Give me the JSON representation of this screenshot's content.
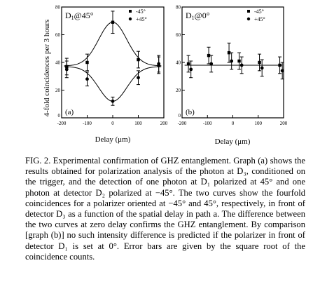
{
  "figure": {
    "ylabel": "4-fold coincidences per 3 hours",
    "panels": [
      {
        "id": "a",
        "tag": "(a)",
        "title_main": "D",
        "title_sub": "1",
        "title_suffix": "@45°",
        "xlabel": "Delay (μm)"
      },
      {
        "id": "b",
        "tag": "(b)",
        "title_main": "D",
        "title_sub": "1",
        "title_suffix": "@0°",
        "xlabel": "Delay (μm)"
      }
    ]
  },
  "chart_data": [
    {
      "type": "scatter",
      "panel": "a",
      "xlim": [
        -200,
        200
      ],
      "ylim": [
        0,
        80
      ],
      "xticks": [
        -200,
        -100,
        0,
        100,
        200
      ],
      "yticks": [
        0,
        20,
        40,
        60,
        80
      ],
      "grid": false,
      "legend_position": "top-right",
      "series": [
        {
          "name": "-45°",
          "marker": "square",
          "x": [
            -180,
            -100,
            0,
            100,
            180
          ],
          "y": [
            37,
            40,
            69,
            42,
            38
          ],
          "err": [
            6,
            6,
            8,
            6,
            6
          ],
          "curve": "gaussian-peak"
        },
        {
          "name": "+45°",
          "marker": "circle",
          "x": [
            -180,
            -100,
            0,
            100,
            180
          ],
          "y": [
            35,
            28,
            12,
            29,
            39
          ],
          "err": [
            6,
            5,
            3,
            5,
            6
          ],
          "curve": "gaussian-dip"
        }
      ]
    },
    {
      "type": "scatter",
      "panel": "b",
      "xlim": [
        -200,
        200
      ],
      "ylim": [
        0,
        80
      ],
      "xticks": [
        -200,
        -100,
        0,
        100,
        200
      ],
      "yticks": [
        0,
        20,
        40,
        60,
        80
      ],
      "grid": false,
      "legend_position": "top-right",
      "series": [
        {
          "name": "-45°",
          "marker": "square",
          "x": [
            -175,
            -95,
            -15,
            25,
            105,
            185
          ],
          "y": [
            39,
            45,
            47,
            41,
            40,
            38
          ],
          "err": [
            6,
            6,
            7,
            6,
            6,
            6
          ]
        },
        {
          "name": "+45°",
          "marker": "circle",
          "x": [
            -165,
            -85,
            -5,
            35,
            115,
            195
          ],
          "y": [
            35,
            39,
            41,
            38,
            36,
            34
          ],
          "err": [
            6,
            6,
            6,
            6,
            6,
            6
          ]
        }
      ],
      "reference_line": 38
    }
  ],
  "caption": "FIG. 2.  Experimental confirmation of GHZ entanglement. Graph (a) shows the results obtained for polarization analysis of the photon at D₃, conditioned on the trigger, and the detection of one photon at D₁ polarized at 45° and one photon at detector D₂ polarized at −45°. The two curves show the fourfold coincidences for a polarizer oriented at −45° and 45°, respectively, in front of detector D₃ as a function of the spatial delay in path a. The difference between the two curves at zero delay confirms the GHZ entanglement. By comparison [graph (b)] no such intensity difference is predicted if the polarizer in front of detector D₁ is set at 0°. Error bars are given by the square root of the coincidence counts."
}
